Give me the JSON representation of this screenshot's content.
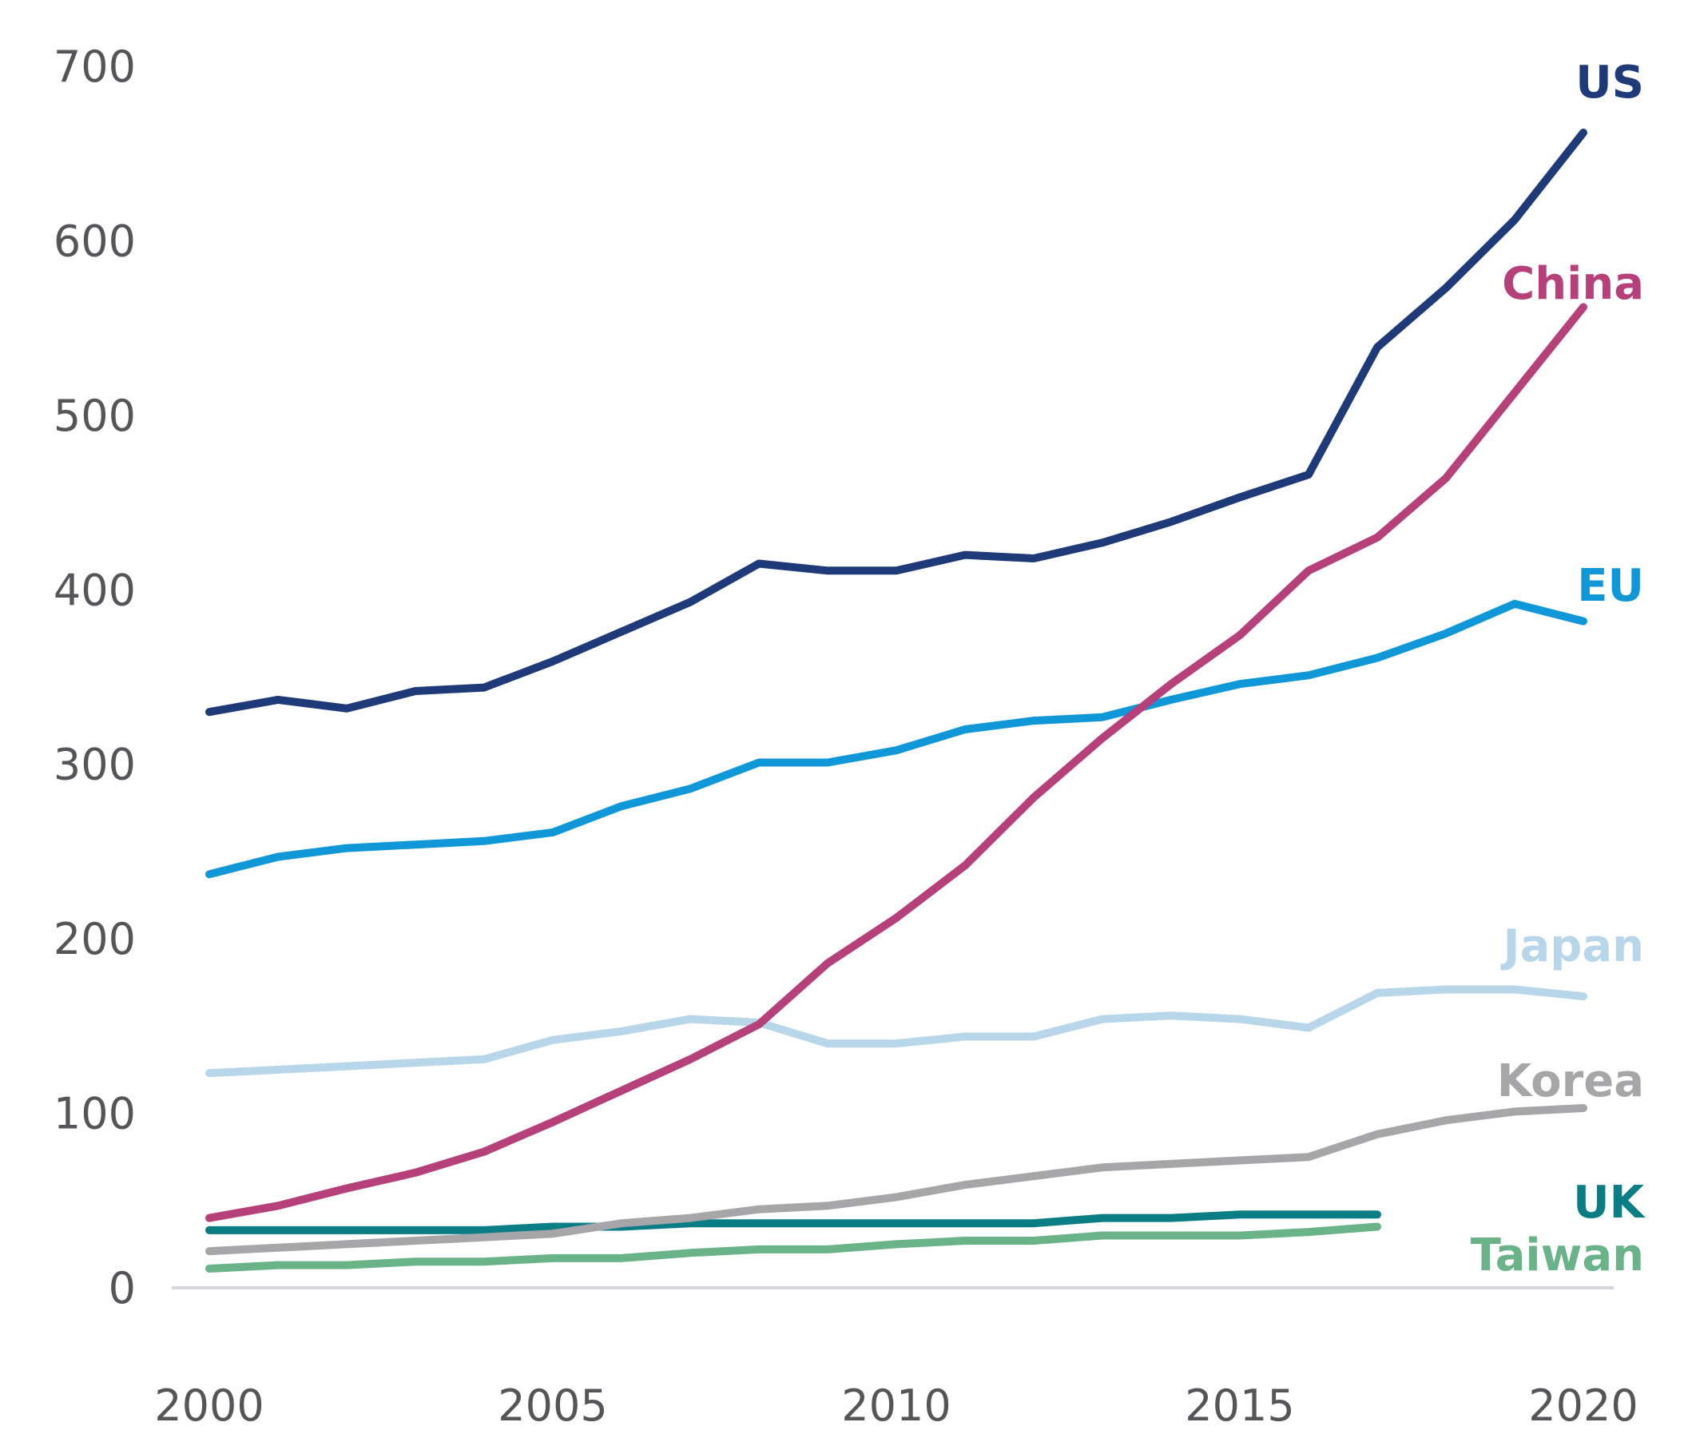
{
  "chart_data": {
    "type": "line",
    "title": "",
    "xlabel": "",
    "ylabel": "",
    "ylim": [
      0,
      700
    ],
    "xlim": [
      2000,
      2020
    ],
    "y_ticks": [
      "0",
      "100",
      "200",
      "300",
      "400",
      "500",
      "600",
      "700"
    ],
    "x_ticks": [
      "2000",
      "2005",
      "2010",
      "2015",
      "2020"
    ],
    "grid": false,
    "legend": "direct labels at right end of lines",
    "series": [
      {
        "name": "US",
        "color": "#1f3a78",
        "x": [
          2000,
          2001,
          2002,
          2003,
          2004,
          2005,
          2006,
          2007,
          2008,
          2009,
          2010,
          2011,
          2012,
          2013,
          2014,
          2015,
          2016,
          2017,
          2018,
          2019,
          2020
        ],
        "values": [
          330,
          337,
          332,
          342,
          344,
          359,
          376,
          393,
          415,
          411,
          411,
          420,
          418,
          427,
          439,
          453,
          466,
          539,
          573,
          612,
          662
        ]
      },
      {
        "name": "China",
        "color": "#b5407a",
        "x": [
          2000,
          2001,
          2002,
          2003,
          2004,
          2005,
          2006,
          2007,
          2008,
          2009,
          2010,
          2011,
          2012,
          2013,
          2014,
          2015,
          2016,
          2017,
          2018,
          2019,
          2020
        ],
        "values": [
          40,
          47,
          57,
          66,
          78,
          95,
          113,
          131,
          151,
          186,
          212,
          242,
          281,
          315,
          346,
          374,
          411,
          430,
          464,
          513,
          562
        ]
      },
      {
        "name": "EU",
        "color": "#0f97d8",
        "x": [
          2000,
          2001,
          2002,
          2003,
          2004,
          2005,
          2006,
          2007,
          2008,
          2009,
          2010,
          2011,
          2012,
          2013,
          2014,
          2015,
          2016,
          2017,
          2018,
          2019,
          2020
        ],
        "values": [
          237,
          247,
          252,
          254,
          256,
          261,
          276,
          286,
          301,
          301,
          308,
          320,
          325,
          327,
          337,
          346,
          351,
          361,
          375,
          392,
          382
        ]
      },
      {
        "name": "Japan",
        "color": "#b8d6ea",
        "x": [
          2000,
          2001,
          2002,
          2003,
          2004,
          2005,
          2006,
          2007,
          2008,
          2009,
          2010,
          2011,
          2012,
          2013,
          2014,
          2015,
          2016,
          2017,
          2018,
          2019,
          2020
        ],
        "values": [
          123,
          125,
          127,
          129,
          131,
          142,
          147,
          154,
          152,
          140,
          140,
          144,
          144,
          154,
          156,
          154,
          149,
          169,
          171,
          171,
          167
        ]
      },
      {
        "name": "Korea",
        "color": "#a6a5a8",
        "x": [
          2000,
          2001,
          2002,
          2003,
          2004,
          2005,
          2006,
          2007,
          2008,
          2009,
          2010,
          2011,
          2012,
          2013,
          2014,
          2015,
          2016,
          2017,
          2018,
          2019,
          2020
        ],
        "values": [
          21,
          23,
          25,
          27,
          29,
          31,
          37,
          40,
          45,
          47,
          52,
          59,
          64,
          69,
          71,
          73,
          75,
          88,
          96,
          101,
          103
        ]
      },
      {
        "name": "UK",
        "color": "#0b7d84",
        "x": [
          2000,
          2001,
          2002,
          2003,
          2004,
          2005,
          2006,
          2007,
          2008,
          2009,
          2010,
          2011,
          2012,
          2013,
          2014,
          2015,
          2016,
          2017
        ],
        "values": [
          33,
          33,
          33,
          33,
          33,
          35,
          35,
          37,
          37,
          37,
          37,
          37,
          37,
          40,
          40,
          42,
          42,
          42
        ]
      },
      {
        "name": "Taiwan",
        "color": "#6ab287",
        "x": [
          2000,
          2001,
          2002,
          2003,
          2004,
          2005,
          2006,
          2007,
          2008,
          2009,
          2010,
          2011,
          2012,
          2013,
          2014,
          2015,
          2016,
          2017
        ],
        "values": [
          11,
          13,
          13,
          15,
          15,
          17,
          17,
          20,
          22,
          22,
          25,
          27,
          27,
          30,
          30,
          30,
          32,
          35
        ]
      }
    ]
  }
}
